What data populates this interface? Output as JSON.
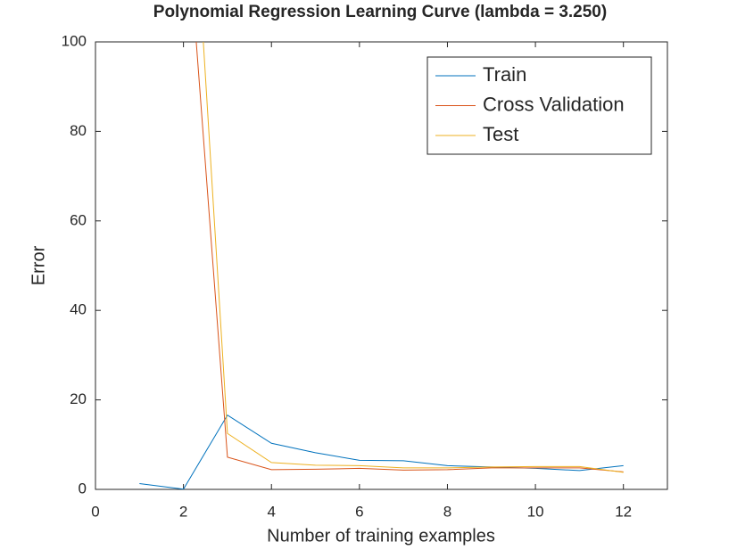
{
  "chart_data": {
    "type": "line",
    "title": "Polynomial Regression Learning Curve (lambda = 3.250)",
    "x_label": "Number of training examples",
    "y_label": "Error",
    "x": [
      1,
      2,
      3,
      4,
      5,
      6,
      7,
      8,
      9,
      10,
      11,
      12
    ],
    "series": [
      {
        "name": "Train",
        "color": "#0072bd",
        "values": [
          1.3,
          0.05,
          16.6,
          10.3,
          8.2,
          6.5,
          6.4,
          5.3,
          5.0,
          4.7,
          4.2,
          5.3
        ]
      },
      {
        "name": "Cross Validation",
        "color": "#d95319",
        "values": [
          null,
          138,
          7.2,
          4.4,
          4.5,
          4.7,
          4.3,
          4.4,
          4.8,
          4.8,
          4.8,
          3.9
        ]
      },
      {
        "name": "Test",
        "color": "#edb120",
        "values": [
          null,
          172,
          12.5,
          6.0,
          5.4,
          5.3,
          4.8,
          4.8,
          5.0,
          5.1,
          5.1,
          3.8
        ]
      }
    ],
    "xlim": [
      0,
      13
    ],
    "xticks": [
      0,
      2,
      4,
      6,
      8,
      10,
      12
    ],
    "ylim": [
      0,
      100
    ],
    "yticks": [
      0,
      20,
      40,
      60,
      80,
      100
    ],
    "grid": false,
    "legend": "northeast"
  }
}
